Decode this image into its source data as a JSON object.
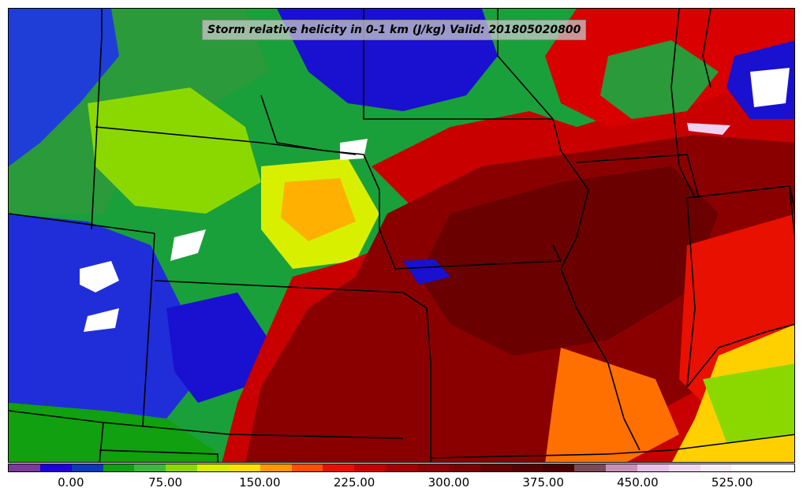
{
  "map": {
    "title": "Storm relative helicity in 0-1 km (J/kg) Valid: 201805020800",
    "field": "storm-relative-helicity-0-1km",
    "units": "J/kg",
    "valid_time": "201805020800"
  },
  "colorbar": {
    "min": -50,
    "max": 575,
    "step": 25,
    "colors": [
      "#7b3b9a",
      "#1f00d8",
      "#0a3ab8",
      "#10a010",
      "#3cb83c",
      "#8bd800",
      "#d8f000",
      "#ffe000",
      "#ff9800",
      "#ff5000",
      "#e81000",
      "#c80000",
      "#a80000",
      "#900000",
      "#7c0000",
      "#680000",
      "#580000",
      "#4c0000",
      "#7a4a56",
      "#c890b8",
      "#e8c0e8",
      "#f0d8f0",
      "#f8ecf8",
      "#ffffff",
      "#ffffff"
    ],
    "tick_values": [
      0,
      75,
      150,
      225,
      300,
      375,
      450,
      525
    ],
    "tick_labels": [
      "0.00",
      "75.00",
      "150.00",
      "225.00",
      "300.00",
      "375.00",
      "450.00",
      "525.00"
    ]
  }
}
